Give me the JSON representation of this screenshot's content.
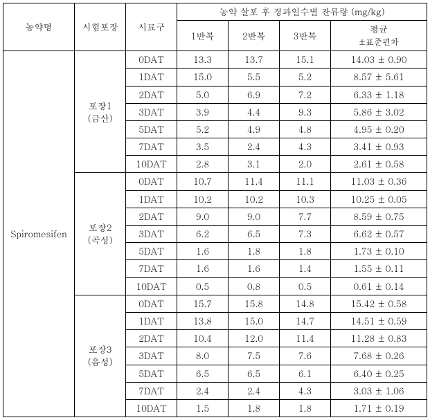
{
  "header": {
    "pesticide": "농약명",
    "test_site": "시험포장",
    "sample_group": "시료구",
    "residue_title": "농약 살포 후 경과일수별 잔류량 (mg/kg)",
    "rep1": "1반복",
    "rep2": "2반복",
    "rep3": "3반복",
    "avg_line1": "평균",
    "avg_line2": "±표준편차"
  },
  "pesticide_name": "Spiromesifen",
  "sites": [
    {
      "name_line1": "포장1",
      "name_line2": "(금산)"
    },
    {
      "name_line1": "포장2",
      "name_line2": "(곡성)"
    },
    {
      "name_line1": "포장3",
      "name_line2": "(음성)"
    }
  ],
  "rows": [
    {
      "dat": "0DAT",
      "r1": "13.3",
      "r2": "13.7",
      "r3": "15.1",
      "avg": "14.03 ± 0.90"
    },
    {
      "dat": "1DAT",
      "r1": "15.0",
      "r2": "5.5",
      "r3": "5.2",
      "avg": "8.57 ± 5.61"
    },
    {
      "dat": "2DAT",
      "r1": "5.0",
      "r2": "6.9",
      "r3": "7.2",
      "avg": "6.33 ± 1.18"
    },
    {
      "dat": "3DAT",
      "r1": "3.9",
      "r2": "4.4",
      "r3": "9.3",
      "avg": "5.86 ± 3.02"
    },
    {
      "dat": "5DAT",
      "r1": "5.2",
      "r2": "4.9",
      "r3": "4.8",
      "avg": "4.95 ± 0.20"
    },
    {
      "dat": "7DAT",
      "r1": "3.5",
      "r2": "2.4",
      "r3": "4.3",
      "avg": "3.41 ± 0.93"
    },
    {
      "dat": "10DAT",
      "r1": "2.8",
      "r2": "3.1",
      "r3": "2.0",
      "avg": "2.61 ± 0.58"
    },
    {
      "dat": "0DAT",
      "r1": "10.7",
      "r2": "11.4",
      "r3": "11.1",
      "avg": "11.03 ± 0.36"
    },
    {
      "dat": "1DAT",
      "r1": "10.2",
      "r2": "10.2",
      "r3": "10.3",
      "avg": "10.25 ± 0.05"
    },
    {
      "dat": "2DAT",
      "r1": "9.0",
      "r2": "9.0",
      "r3": "7.7",
      "avg": "8.59 ± 0.75"
    },
    {
      "dat": "3DAT",
      "r1": "6.2",
      "r2": "6.5",
      "r3": "7.3",
      "avg": "6.62 ± 0.57"
    },
    {
      "dat": "5DAT",
      "r1": "1.6",
      "r2": "1.8",
      "r3": "1.8",
      "avg": "1.73 ± 0.10"
    },
    {
      "dat": "7DAT",
      "r1": "1.6",
      "r2": "1.6",
      "r3": "1.4",
      "avg": "1.55 ± 0.11"
    },
    {
      "dat": "10DAT",
      "r1": "0.5",
      "r2": "0.8",
      "r3": "0.5",
      "avg": "0.61 ± 0.14"
    },
    {
      "dat": "0DAT",
      "r1": "15.7",
      "r2": "15.8",
      "r3": "14.8",
      "avg": "15.42 ± 0.58"
    },
    {
      "dat": "1DAT",
      "r1": "13.8",
      "r2": "15.0",
      "r3": "14.7",
      "avg": "14.51 ± 0.59"
    },
    {
      "dat": "2DAT",
      "r1": "10.4",
      "r2": "12.0",
      "r3": "11.4",
      "avg": "11.28 ± 0.83"
    },
    {
      "dat": "3DAT",
      "r1": "8.0",
      "r2": "7.5",
      "r3": "7.6",
      "avg": "7.68 ± 0.26"
    },
    {
      "dat": "5DAT",
      "r1": "6.5",
      "r2": "6.5",
      "r3": "6.1",
      "avg": "6.40 ± 0.25"
    },
    {
      "dat": "7DAT",
      "r1": "2.4",
      "r2": "2.4",
      "r3": "4.3",
      "avg": "3.03 ± 1.06"
    },
    {
      "dat": "10DAT",
      "r1": "1.5",
      "r2": "1.8",
      "r3": "1.8",
      "avg": "1.71 ± 0.19"
    }
  ]
}
